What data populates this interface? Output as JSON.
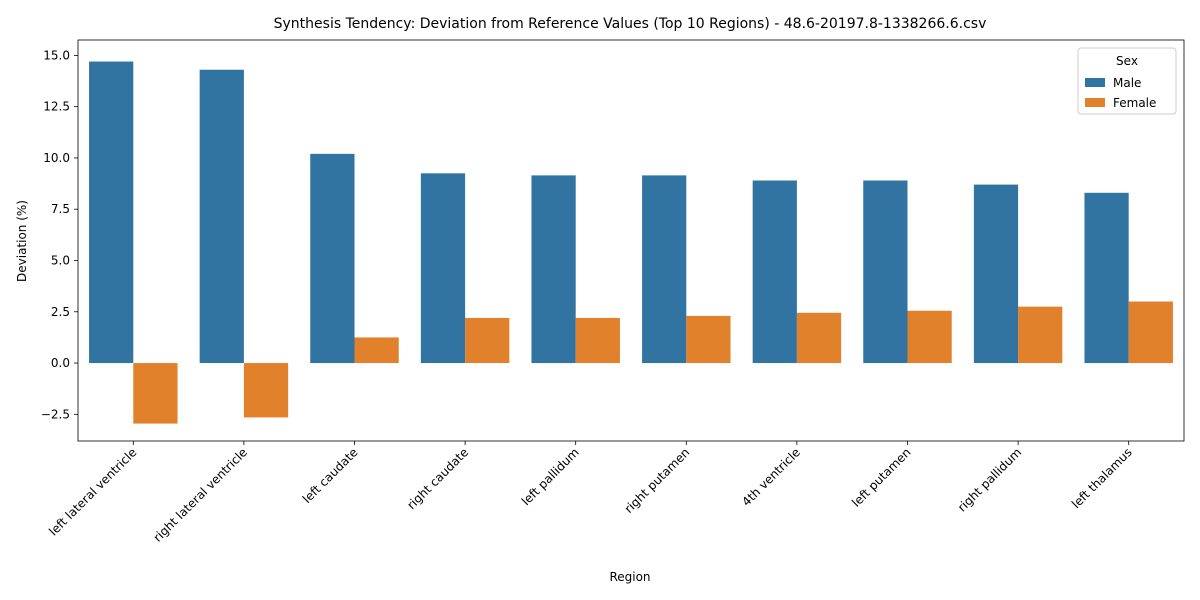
{
  "chart_data": {
    "type": "bar",
    "title": "Synthesis Tendency: Deviation from Reference Values (Top 10 Regions) - 48.6-20197.8-1338266.6.csv",
    "xlabel": "Region",
    "ylabel": "Deviation (%)",
    "ylim": [
      -3.8,
      15.75
    ],
    "yticks": [
      -2.5,
      0.0,
      2.5,
      5.0,
      7.5,
      10.0,
      12.5,
      15.0
    ],
    "ytick_labels": [
      "−2.5",
      "0.0",
      "2.5",
      "5.0",
      "7.5",
      "10.0",
      "12.5",
      "15.0"
    ],
    "grid": false,
    "legend": {
      "title": "Sex",
      "placement": "top-right"
    },
    "categories": [
      "left lateral ventricle",
      "right lateral ventricle",
      "left caudate",
      "right caudate",
      "left pallidum",
      "right putamen",
      "4th ventricle",
      "left putamen",
      "right pallidum",
      "left thalamus"
    ],
    "series": [
      {
        "name": "Male",
        "color": "#3274a1",
        "values": [
          14.7,
          14.3,
          10.2,
          9.25,
          9.15,
          9.15,
          8.9,
          8.9,
          8.7,
          8.3
        ]
      },
      {
        "name": "Female",
        "color": "#e1812c",
        "values": [
          -2.95,
          -2.65,
          1.25,
          2.2,
          2.2,
          2.3,
          2.45,
          2.55,
          2.75,
          3.0
        ]
      }
    ]
  }
}
